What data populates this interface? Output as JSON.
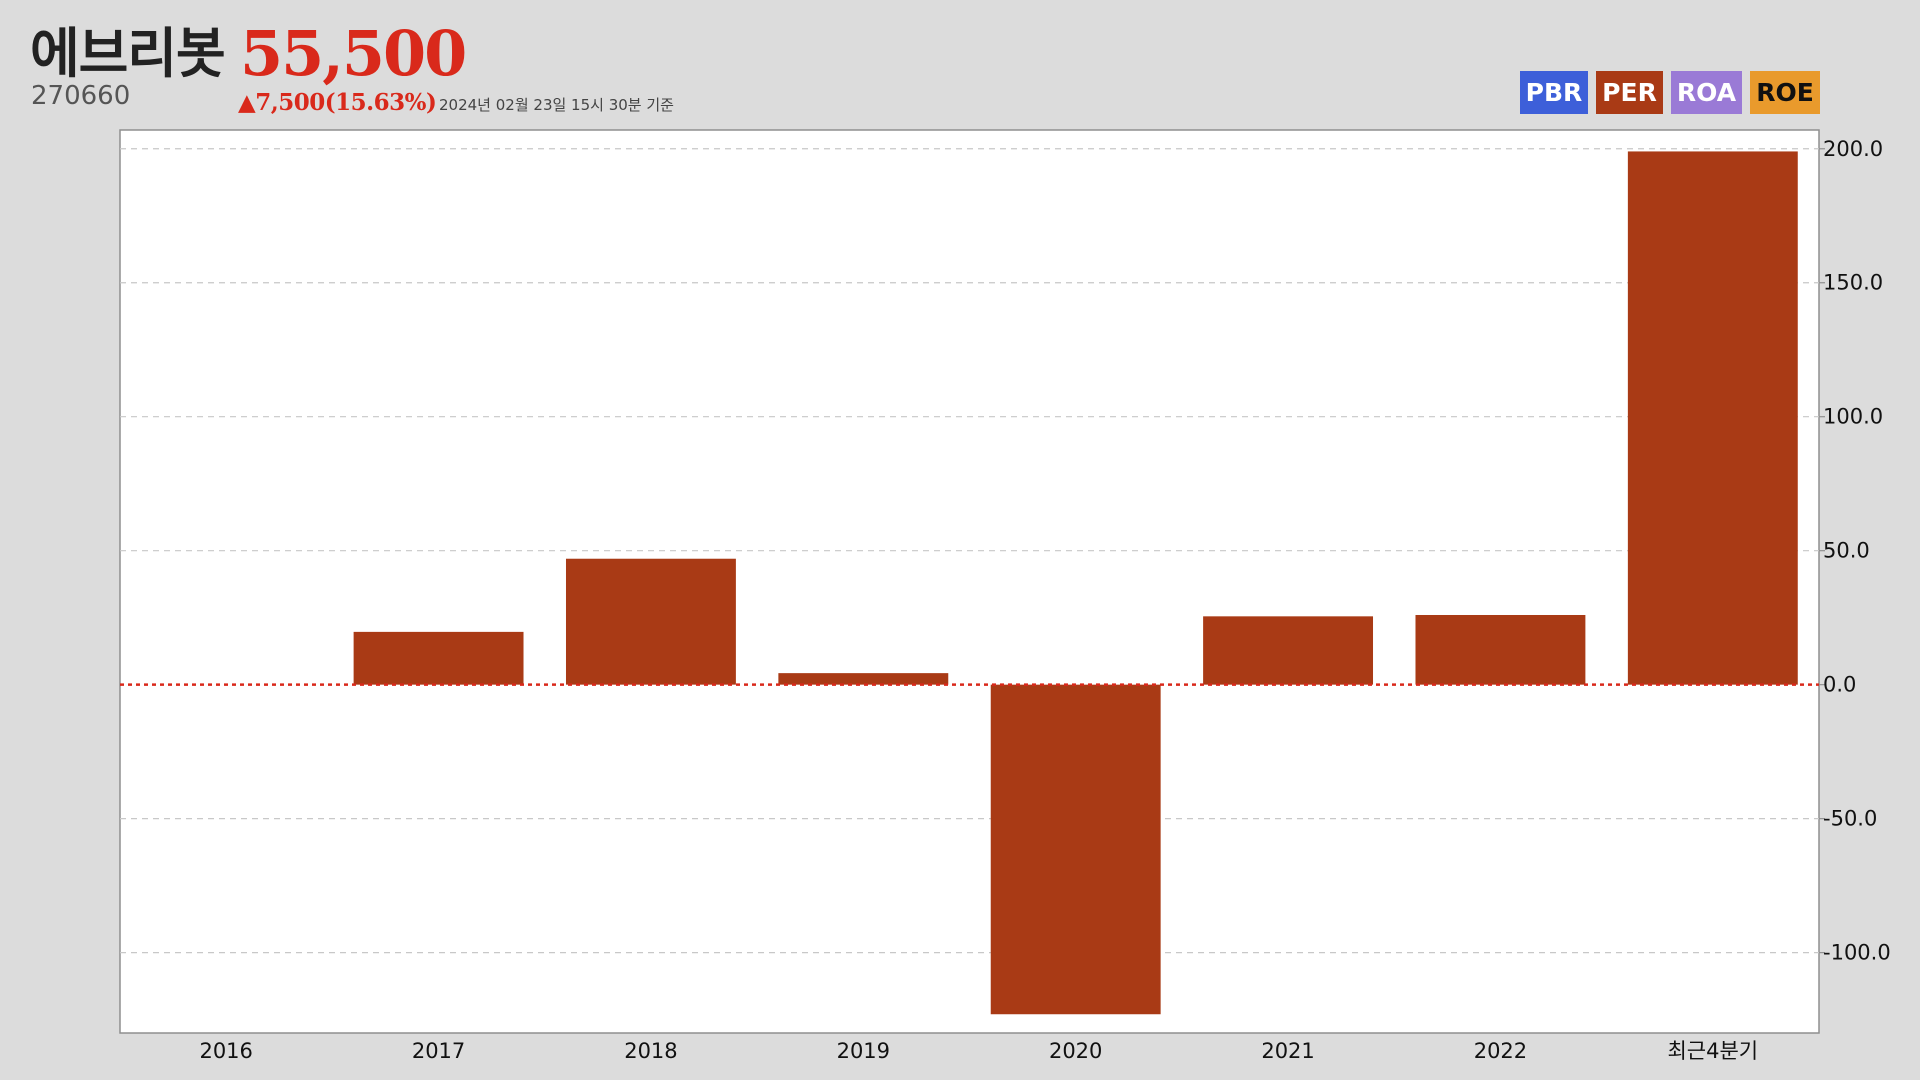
{
  "header": {
    "stock_name": "에브리봇",
    "stock_code": "270660",
    "price": "55,500",
    "change": "▲7,500(15.63%)",
    "as_of": "2024년 02월 23일 15시 30분 기준"
  },
  "tabs": [
    {
      "label": "PBR",
      "color": "#3d5fd9"
    },
    {
      "label": "PER",
      "color": "#a93a15"
    },
    {
      "label": "ROA",
      "color": "#9a7ad6"
    },
    {
      "label": "ROE",
      "color": "#e99a2c"
    }
  ],
  "chart_data": {
    "type": "bar",
    "categories": [
      "2016",
      "2017",
      "2018",
      "2019",
      "2020",
      "2021",
      "2022",
      "최근4분기"
    ],
    "series": [
      {
        "values": [
          null,
          19.7,
          47.0,
          4.3,
          -123.0,
          25.5,
          26.0,
          199.0
        ]
      }
    ],
    "ylim": [
      -130,
      207
    ],
    "yticks": [
      200,
      150,
      100,
      50,
      0,
      -50,
      -100
    ],
    "ytick_labels": [
      "200.0",
      "150.0",
      "100.0",
      "50.0",
      "0.0",
      "-50.0",
      "-100.0"
    ],
    "y_axis_side": "right",
    "grid": true,
    "bar_color": "#a93a15",
    "zero_line_color": "#d9291b"
  }
}
